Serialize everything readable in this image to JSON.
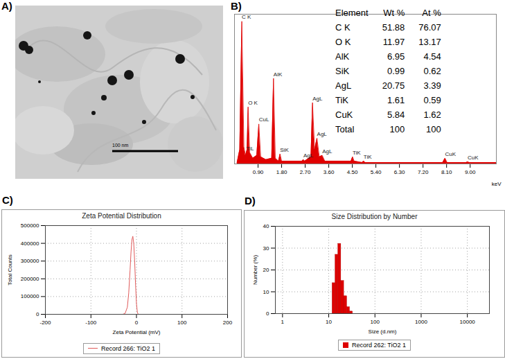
{
  "chart_data": [
    {
      "panel": "A)",
      "type": "image",
      "scale_bar": "100 nm"
    },
    {
      "panel": "B)",
      "type": "area",
      "color": "#e00000",
      "x": [
        0.1,
        0.2,
        0.28,
        0.36,
        0.42,
        0.45,
        0.48,
        0.52,
        0.58,
        0.7,
        0.85,
        0.93,
        1.0,
        1.2,
        1.42,
        1.49,
        1.56,
        1.68,
        1.74,
        1.8,
        2.0,
        2.58,
        2.63,
        2.68,
        2.92,
        2.98,
        3.06,
        3.15,
        3.24,
        3.35,
        3.45,
        4.0,
        4.45,
        4.51,
        4.57,
        4.87,
        4.93,
        4.99,
        6.0,
        7.95,
        8.04,
        8.12,
        8.85,
        8.9,
        8.96,
        10
      ],
      "values": [
        1,
        10,
        100,
        12,
        6,
        8,
        10,
        40,
        8,
        4,
        6,
        28,
        5,
        3,
        4,
        60,
        4,
        2,
        7,
        2,
        2,
        2,
        3,
        2,
        5,
        43,
        10,
        18,
        5,
        6,
        2,
        2,
        2,
        5,
        2,
        1,
        2,
        1,
        1,
        1,
        4,
        1,
        1,
        1.5,
        1,
        1
      ],
      "xlim": [
        0,
        10
      ],
      "ylim": [
        0,
        105
      ],
      "xticks": [
        {
          "value": 0.9,
          "label": "0.90"
        },
        {
          "value": 1.8,
          "label": "1.80"
        },
        {
          "value": 2.7,
          "label": "2.70"
        },
        {
          "value": 3.6,
          "label": "3.60"
        },
        {
          "value": 4.5,
          "label": "4.50"
        },
        {
          "value": 5.4,
          "label": "5.40"
        },
        {
          "value": 6.3,
          "label": "6.30"
        },
        {
          "value": 7.2,
          "label": "7.20"
        },
        {
          "value": 8.1,
          "label": "8.10"
        },
        {
          "value": 9,
          "label": "9.00"
        }
      ],
      "x_label": "keV",
      "tick_labels": "x",
      "peaks": [
        {
          "label": "C K",
          "x": 0.28,
          "value": 100
        },
        {
          "label": "TiL",
          "x": 0.45,
          "value": 8
        },
        {
          "label": "O K",
          "x": 0.52,
          "value": 40
        },
        {
          "label": "CuL",
          "x": 0.93,
          "value": 28
        },
        {
          "label": "AlK",
          "x": 1.49,
          "value": 60
        },
        {
          "label": "SiK",
          "x": 1.74,
          "value": 7
        },
        {
          "label": "AgL",
          "x": 2.63,
          "value": 3
        },
        {
          "label": "AgL",
          "x": 2.98,
          "value": 43
        },
        {
          "label": "AgL",
          "x": 3.15,
          "value": 18
        },
        {
          "label": "AgL",
          "x": 3.35,
          "value": 6
        },
        {
          "label": "TiK",
          "x": 4.51,
          "value": 5
        },
        {
          "label": "TiK",
          "x": 4.93,
          "value": 2
        },
        {
          "label": "CuK",
          "x": 8.04,
          "value": 4
        },
        {
          "label": "CuK",
          "x": 8.9,
          "value": 1.5
        }
      ],
      "table": {
        "columns": [
          "Element",
          "Wt %",
          "At %"
        ],
        "rows": [
          [
            "C K",
            51.88,
            76.07
          ],
          [
            "O K",
            11.97,
            13.17
          ],
          [
            "AlK",
            6.95,
            4.54
          ],
          [
            "SiK",
            0.99,
            0.62
          ],
          [
            "AgL",
            20.75,
            3.39
          ],
          [
            "TiK",
            1.61,
            0.59
          ],
          [
            "CuK",
            5.84,
            1.62
          ],
          [
            "Total",
            100,
            100
          ]
        ]
      }
    },
    {
      "panel": "C)",
      "type": "line",
      "title": "Zeta Potential Distribution",
      "x_label": "Zeta Potential (mV)",
      "y_label": "Total Counts",
      "series": [
        {
          "name": "Record 266: TiO2 1",
          "color": "#e05a5a",
          "x": [
            -30,
            -25,
            -20,
            -17,
            -14,
            -12,
            -10,
            -8,
            -6,
            -4,
            -2,
            0,
            2,
            4
          ],
          "values": [
            0,
            5000,
            40000,
            120000,
            250000,
            350000,
            420000,
            440000,
            400000,
            300000,
            170000,
            60000,
            10000,
            0
          ]
        }
      ],
      "xlim": [
        -200,
        200
      ],
      "ylim": [
        0,
        500000
      ],
      "xticks": [
        -200,
        -100,
        0,
        100,
        200
      ],
      "yticks": [
        0,
        100000,
        200000,
        300000,
        400000,
        500000
      ],
      "grid": true,
      "legend": "bottom"
    },
    {
      "panel": "D)",
      "type": "histogram",
      "title": "Size Distribution by Number",
      "x_label": "Size (d.nm)",
      "y_label": "Number (%)",
      "log": "x",
      "bins": [
        12.0,
        13.9,
        16.0,
        18.5,
        21.4,
        24.8,
        28.6,
        33.1
      ],
      "series": [
        {
          "name": "Record 262: TiO2 1",
          "color": "#dd0000",
          "values": [
            14,
            27,
            32,
            15,
            8,
            3,
            1
          ]
        }
      ],
      "xlim": [
        0.7,
        30000
      ],
      "ylim": [
        0,
        40
      ],
      "xticks": [
        1,
        10,
        100,
        1000,
        10000
      ],
      "yticks": [
        0,
        10,
        20,
        30,
        40
      ],
      "grid": true,
      "legend": "bottom"
    }
  ]
}
